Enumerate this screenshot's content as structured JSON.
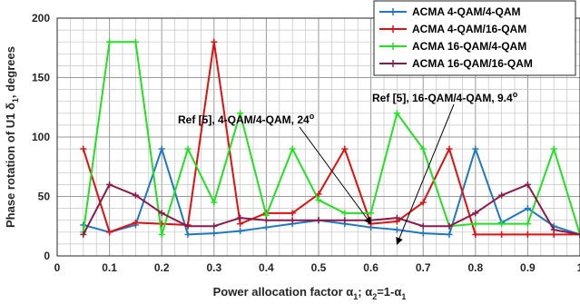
{
  "chart_data": {
    "type": "line",
    "xlabel": "Power allocation factor",
    "xlabel_math": "α1; α2=1-α1",
    "ylabel": "Phase rotation of U1 δ1, degrees",
    "xlim": [
      0,
      1
    ],
    "ylim": [
      0,
      200
    ],
    "xticks": [
      0,
      0.1,
      0.2,
      0.3,
      0.4,
      0.5,
      0.6,
      0.7,
      0.8,
      0.9,
      1
    ],
    "xtick_labels": [
      "0",
      "0.1",
      "0.2",
      "0.3",
      "0.4",
      "0.5",
      "0.6",
      "0.7",
      "0.8",
      "0.9",
      "1"
    ],
    "yticks": [
      0,
      50,
      100,
      150,
      200
    ],
    "ytick_labels": [
      "0",
      "50",
      "100",
      "150",
      "200"
    ],
    "grid": true,
    "legend_position": "top-right",
    "x": [
      0.05,
      0.1,
      0.15,
      0.2,
      0.25,
      0.3,
      0.35,
      0.4,
      0.45,
      0.5,
      0.55,
      0.6,
      0.65,
      0.7,
      0.75,
      0.8,
      0.85,
      0.9,
      0.95,
      1.0
    ],
    "series": [
      {
        "name": "ACMA 4-QAM/4-QAM",
        "color": "#1f77c4",
        "values": [
          26,
          20,
          26,
          90,
          18,
          19,
          21,
          24,
          27,
          30,
          27,
          24,
          22,
          19,
          18,
          90,
          28,
          40,
          25,
          18
        ]
      },
      {
        "name": "ACMA 4-QAM/16-QAM",
        "color": "#e01010",
        "values": [
          90,
          20,
          28,
          27,
          26,
          180,
          27,
          36,
          36,
          52,
          90,
          27,
          29,
          45,
          90,
          18,
          18,
          18,
          18,
          18
        ]
      },
      {
        "name": "ACMA 16-QAM/4-QAM",
        "color": "#22e022",
        "values": [
          20,
          180,
          180,
          18,
          90,
          45,
          120,
          34,
          90,
          47,
          36,
          36,
          120,
          90,
          25,
          27,
          27,
          27,
          90,
          18
        ]
      },
      {
        "name": "ACMA 16-QAM/16-QAM",
        "color": "#8b1a4a",
        "values": [
          18,
          60,
          51,
          36,
          25,
          25,
          32,
          30,
          30,
          30,
          30,
          30,
          32,
          25,
          25,
          36,
          51,
          60,
          22,
          18
        ]
      }
    ],
    "annotations": [
      {
        "text": "Ref [5], 4-QAM/4-QAM, 24",
        "superscript": "o",
        "arrow_to": [
          0.6,
          27
        ]
      },
      {
        "text": "Ref [5], 16-QAM/4-QAM, 9.4",
        "superscript": "o",
        "arrow_to": [
          0.65,
          10
        ]
      }
    ]
  }
}
